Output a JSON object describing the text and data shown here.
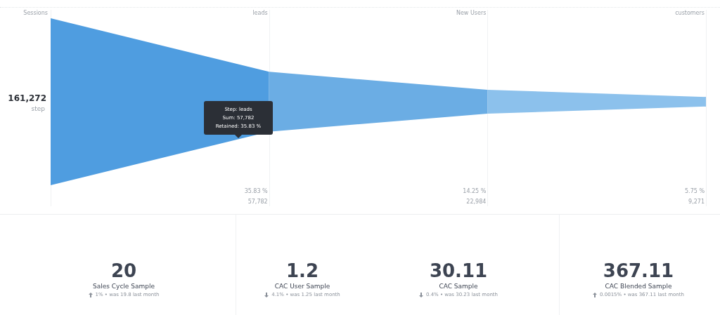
{
  "chart_data": [
    {
      "type": "other",
      "categories": [
        "Sessions",
        "leads",
        "New Users",
        "customers"
      ],
      "values": [
        161272,
        57782,
        22984,
        9271
      ],
      "value_labels": [
        "161,272",
        "57,782",
        "22,984",
        "9,271"
      ],
      "colors": [
        "#4f9de0",
        "#6badE4",
        "#8cc1ec",
        "#8cc1ec"
      ],
      "annotations": [
        {
          "text": "step",
          "x": "Sessions"
        },
        {
          "text": "35.83 %",
          "x": "leads"
        },
        {
          "text": "14.25 %",
          "x": "New Users"
        },
        {
          "text": "5.75 %",
          "x": "customers"
        },
        "Step: leads",
        "Sum: 57,782",
        "Retained: 35.83 %"
      ]
    },
    {
      "type": "other",
      "title": "Sales Cycle Sample",
      "annotations": [
        "20",
        "1% • was 19.8 last month"
      ]
    },
    {
      "type": "other",
      "title": "CAC User Sample",
      "annotations": [
        "1.2",
        "4.1% • was 1.25 last month"
      ]
    },
    {
      "type": "other",
      "title": "CAC Sample",
      "annotations": [
        "30.11",
        "0.4% • was 30.23 last month"
      ]
    },
    {
      "type": "other",
      "title": "CAC Blended Sample",
      "annotations": [
        "367.11",
        "0.0015% • was 367.11 last month"
      ]
    }
  ]
}
